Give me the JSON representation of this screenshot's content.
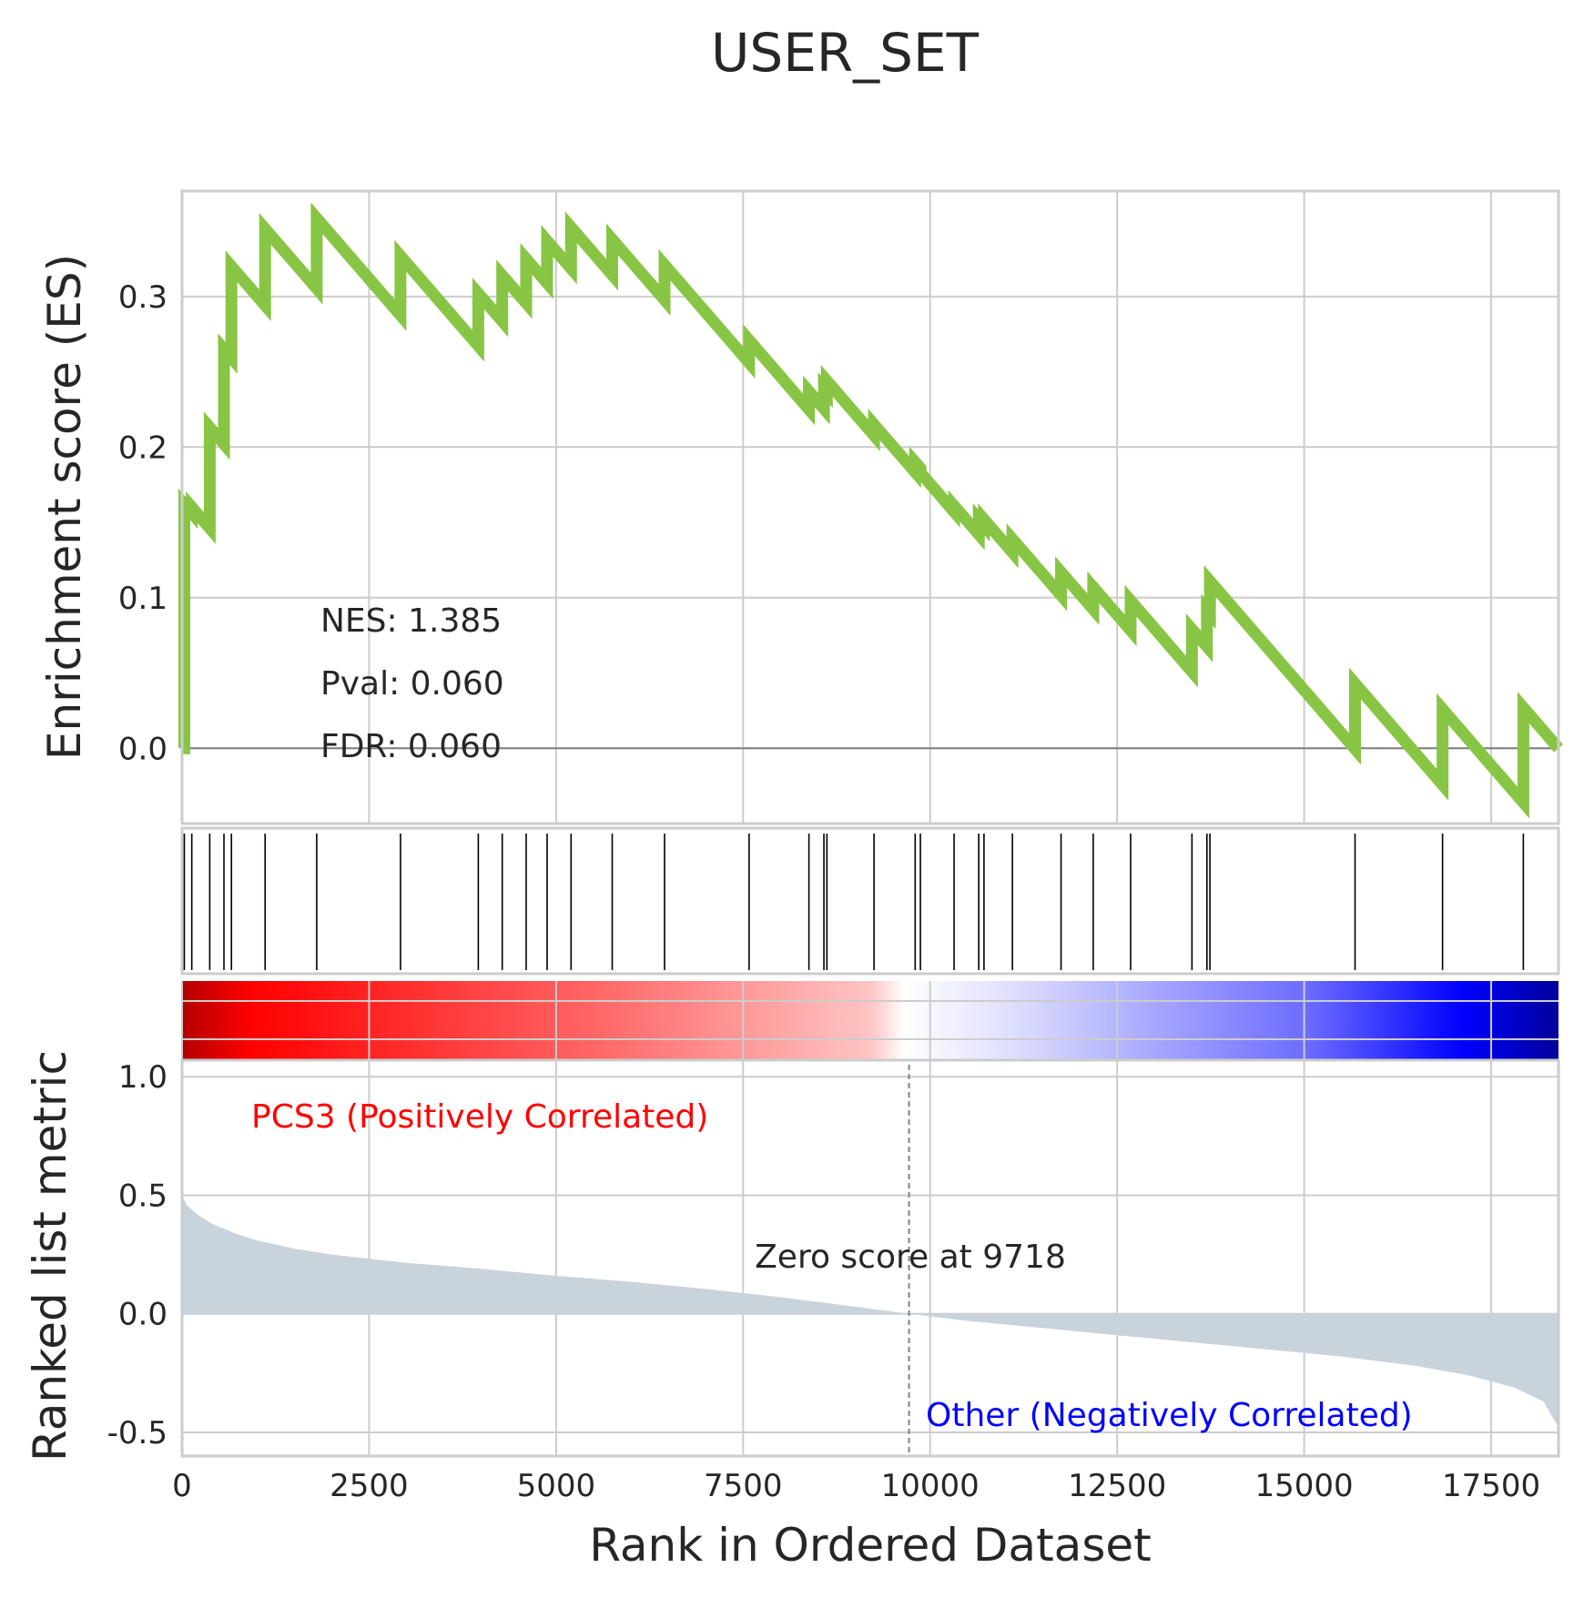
{
  "title": "USER_SET",
  "stats": {
    "nes": "NES: 1.385",
    "pval": "Pval: 0.060",
    "fdr": "FDR: 0.060"
  },
  "labels": {
    "es_ylabel": "Enrichment score (ES)",
    "rank_ylabel": "Ranked list metric",
    "xlabel": "Rank in Ordered Dataset",
    "positive": "PCS3 (Positively Correlated)",
    "negative": "Other (Negatively Correlated)",
    "zero_score": "Zero score at 9718"
  },
  "colors": {
    "es_line": "#88c544",
    "metric_fill": "#c9d3dc",
    "hit_line": "#000000",
    "positive_text": "#ff0000",
    "negative_text": "#0000ff"
  },
  "chart_data": {
    "type": "line",
    "x_range": [
      0,
      18400
    ],
    "zero_score_rank": 9718,
    "es_panel": {
      "ylim": [
        -0.05,
        0.37
      ],
      "yticks": [
        0.0,
        0.1,
        0.2,
        0.3
      ],
      "ytick_labels": [
        "0.0",
        "0.1",
        "0.2",
        "0.3"
      ],
      "hits": [
        {
          "rank": 30,
          "es": 0.162
        },
        {
          "rank": 130,
          "es": 0.16
        },
        {
          "rank": 370,
          "es": 0.213
        },
        {
          "rank": 560,
          "es": 0.265
        },
        {
          "rank": 660,
          "es": 0.32
        },
        {
          "rank": 1110,
          "es": 0.345
        },
        {
          "rank": 1800,
          "es": 0.352
        },
        {
          "rank": 2920,
          "es": 0.327
        },
        {
          "rank": 3960,
          "es": 0.302
        },
        {
          "rank": 4280,
          "es": 0.314
        },
        {
          "rank": 4600,
          "es": 0.325
        },
        {
          "rank": 4880,
          "es": 0.337
        },
        {
          "rank": 5200,
          "es": 0.346
        },
        {
          "rank": 5750,
          "es": 0.338
        },
        {
          "rank": 6450,
          "es": 0.321
        },
        {
          "rank": 7580,
          "es": 0.271
        },
        {
          "rank": 8380,
          "es": 0.237
        },
        {
          "rank": 8580,
          "es": 0.239
        },
        {
          "rank": 8620,
          "es": 0.244
        },
        {
          "rank": 9250,
          "es": 0.215
        },
        {
          "rank": 9800,
          "es": 0.19
        },
        {
          "rank": 9870,
          "es": 0.183
        },
        {
          "rank": 10320,
          "es": 0.161
        },
        {
          "rank": 10650,
          "es": 0.152
        },
        {
          "rank": 10720,
          "es": 0.152
        },
        {
          "rank": 11100,
          "es": 0.139
        },
        {
          "rank": 11750,
          "es": 0.117
        },
        {
          "rank": 12180,
          "es": 0.107
        },
        {
          "rank": 12680,
          "es": 0.098
        },
        {
          "rank": 13500,
          "es": 0.079
        },
        {
          "rank": 13700,
          "es": 0.092
        },
        {
          "rank": 13740,
          "es": 0.111
        },
        {
          "rank": 15680,
          "es": 0.043
        },
        {
          "rank": 16850,
          "es": 0.026
        },
        {
          "rank": 17930,
          "es": 0.027
        }
      ],
      "end": {
        "rank": 18400,
        "es": 0.0
      }
    },
    "metric_panel": {
      "ylim": [
        -0.6,
        1.07
      ],
      "yticks": [
        -0.5,
        0.0,
        0.5,
        1.0
      ],
      "ytick_labels": [
        "-0.5",
        "0.0",
        "0.5",
        "1.0"
      ],
      "xticks": [
        0,
        2500,
        5000,
        7500,
        10000,
        12500,
        15000,
        17500
      ],
      "xtick_labels": [
        "0",
        "2500",
        "5000",
        "7500",
        "10000",
        "12500",
        "15000",
        "17500"
      ],
      "curve": [
        {
          "rank": 0,
          "value": 0.5
        },
        {
          "rank": 60,
          "value": 0.46
        },
        {
          "rank": 200,
          "value": 0.42
        },
        {
          "rank": 400,
          "value": 0.38
        },
        {
          "rank": 700,
          "value": 0.34
        },
        {
          "rank": 1000,
          "value": 0.31
        },
        {
          "rank": 1500,
          "value": 0.275
        },
        {
          "rank": 2000,
          "value": 0.25
        },
        {
          "rank": 3000,
          "value": 0.215
        },
        {
          "rank": 4000,
          "value": 0.19
        },
        {
          "rank": 5000,
          "value": 0.16
        },
        {
          "rank": 6000,
          "value": 0.135
        },
        {
          "rank": 7000,
          "value": 0.105
        },
        {
          "rank": 8000,
          "value": 0.07
        },
        {
          "rank": 9000,
          "value": 0.03
        },
        {
          "rank": 9718,
          "value": 0.0
        },
        {
          "rank": 10500,
          "value": -0.03
        },
        {
          "rank": 11500,
          "value": -0.06
        },
        {
          "rank": 12500,
          "value": -0.09
        },
        {
          "rank": 13500,
          "value": -0.12
        },
        {
          "rank": 14500,
          "value": -0.15
        },
        {
          "rank": 15500,
          "value": -0.18
        },
        {
          "rank": 16500,
          "value": -0.22
        },
        {
          "rank": 17200,
          "value": -0.26
        },
        {
          "rank": 17800,
          "value": -0.31
        },
        {
          "rank": 18200,
          "value": -0.37
        },
        {
          "rank": 18400,
          "value": -0.48
        }
      ]
    }
  }
}
